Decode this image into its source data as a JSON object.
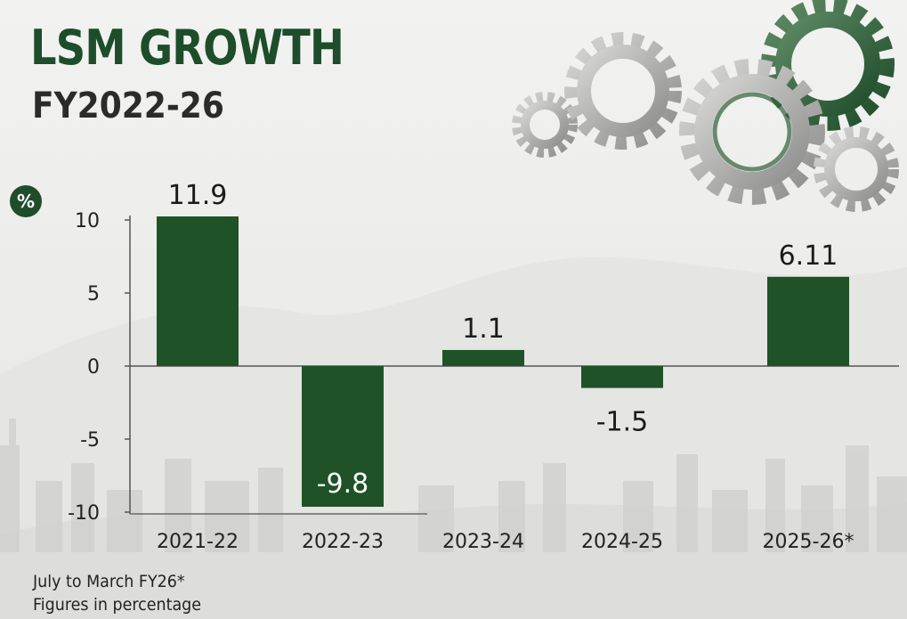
{
  "header": {
    "title": "LSM GROWTH",
    "subtitle": "FY2022-26",
    "unit_badge": "%"
  },
  "footnotes": {
    "line1": "July to March FY26*",
    "line2": "Figures in percentage"
  },
  "colors": {
    "bar": "#1f5227",
    "title": "#1d4d2a",
    "axis": "#555555"
  },
  "chart_data": {
    "type": "bar",
    "categories": [
      "2021-22",
      "2022-23",
      "2023-24",
      "2024-25",
      "2025-26*"
    ],
    "values": [
      11.9,
      -9.8,
      1.1,
      -1.5,
      6.11
    ],
    "data_labels": [
      "11.9",
      "-9.8",
      "1.1",
      "-1.5",
      "6.11"
    ],
    "yticks": [
      10,
      5,
      0,
      -5,
      -10
    ],
    "ylim": [
      -10,
      10
    ],
    "title": "LSM GROWTH",
    "xlabel": "",
    "ylabel": "%",
    "grid": false,
    "legend": "none"
  }
}
